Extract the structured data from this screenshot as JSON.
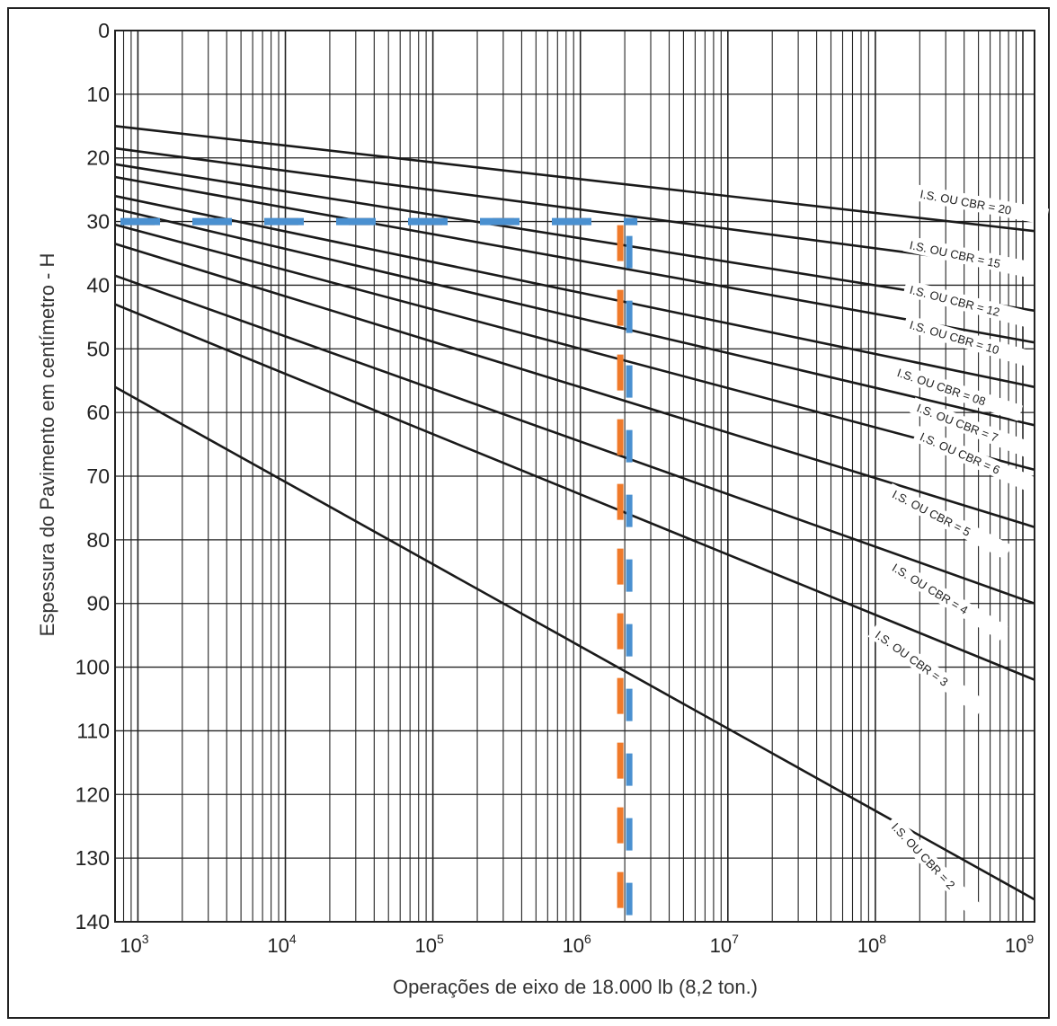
{
  "chart_data": {
    "type": "line",
    "xlabel": "Operações de eixo de 18.000 lb (8,2 ton.)",
    "ylabel": "Espessura do Pavimento em centímetro - H",
    "x_scale": "log",
    "xlim": [
      700,
      1200000000
    ],
    "ylim": [
      0,
      140
    ],
    "y_inverted": true,
    "grid": true,
    "x_ticks": [
      {
        "base": "10",
        "exp": "3"
      },
      {
        "base": "10",
        "exp": "4"
      },
      {
        "base": "10",
        "exp": "5"
      },
      {
        "base": "10",
        "exp": "6"
      },
      {
        "base": "10",
        "exp": "7"
      },
      {
        "base": "10",
        "exp": "8"
      },
      {
        "base": "10",
        "exp": "9"
      }
    ],
    "y_ticks": [
      "0",
      "10",
      "20",
      "30",
      "40",
      "50",
      "60",
      "70",
      "80",
      "90",
      "100",
      "110",
      "120",
      "130",
      "140"
    ],
    "series": [
      {
        "name": "I.S. OU CBR = 20",
        "x": [
          700,
          1200000000
        ],
        "y": [
          15,
          31.5
        ]
      },
      {
        "name": "I.S. OU CBR = 15",
        "x": [
          700,
          1200000000
        ],
        "y": [
          18.5,
          37.5
        ]
      },
      {
        "name": "I.S. OU CBR = 12",
        "x": [
          700,
          1200000000
        ],
        "y": [
          21,
          44
        ]
      },
      {
        "name": "I.S. OU CBR = 10",
        "x": [
          700,
          1200000000
        ],
        "y": [
          23,
          49
        ]
      },
      {
        "name": "I.S. OU CBR = 08",
        "x": [
          700,
          1200000000
        ],
        "y": [
          26,
          56
        ]
      },
      {
        "name": "I.S. OU CBR = 7",
        "x": [
          700,
          1200000000
        ],
        "y": [
          28,
          62
        ]
      },
      {
        "name": "I.S. OU CBR = 6",
        "x": [
          700,
          1200000000
        ],
        "y": [
          30.5,
          69
        ]
      },
      {
        "name": "I.S. OU CBR = 5",
        "x": [
          700,
          1200000000
        ],
        "y": [
          33.5,
          78
        ]
      },
      {
        "name": "I.S. OU CBR = 4",
        "x": [
          700,
          1200000000
        ],
        "y": [
          38.5,
          90
        ]
      },
      {
        "name": "I.S. OU CBR = 3",
        "x": [
          700,
          1200000000
        ],
        "y": [
          43,
          102
        ]
      },
      {
        "name": "I.S. OU CBR = 2",
        "x": [
          700,
          1200000000
        ],
        "y": [
          56,
          136.5
        ]
      }
    ],
    "curve_labels": [
      {
        "text": "I.S. OU CBR = 20",
        "x": 200000000,
        "y": 26
      },
      {
        "text": "I.S. OU CBR = 15",
        "x": 170000000,
        "y": 34
      },
      {
        "text": "I.S. OU CBR = 12",
        "x": 170000000,
        "y": 41
      },
      {
        "text": "I.S. OU CBR = 10",
        "x": 170000000,
        "y": 46.5
      },
      {
        "text": "I.S. OU CBR = 08",
        "x": 140000000,
        "y": 54
      },
      {
        "text": "I.S. OU CBR = 7",
        "x": 190000000,
        "y": 59.5
      },
      {
        "text": "I.S. OU CBR = 6",
        "x": 200000000,
        "y": 64
      },
      {
        "text": "I.S. OU CBR = 5",
        "x": 130000000,
        "y": 73
      },
      {
        "text": "I.S. OU CBR = 4",
        "x": 130000000,
        "y": 84.5
      },
      {
        "text": "I.S. OU CBR = 3",
        "x": 100000000,
        "y": 95
      },
      {
        "text": "I.S. OU CBR = 2",
        "x": 130000000,
        "y": 125
      }
    ],
    "reference_lines": [
      {
        "orientation": "horizontal",
        "value": 30,
        "x_from": 700,
        "x_to": 2000000,
        "colors": [
          "#f07a2a",
          "#4a90d0"
        ]
      },
      {
        "orientation": "vertical",
        "value": 2000000,
        "y_from": 30,
        "y_to": 140,
        "colors": [
          "#f07a2a",
          "#4a90d0"
        ]
      }
    ],
    "colors": {
      "lines": "#1a1a1a",
      "grid": "#222222",
      "orange": "#f07a2a",
      "blue": "#4a90d0"
    }
  }
}
